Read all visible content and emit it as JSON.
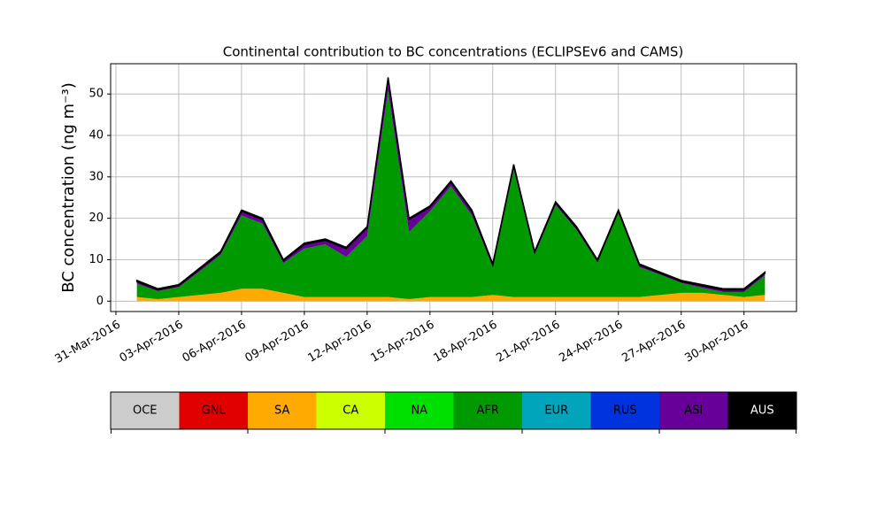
{
  "chart_data": {
    "type": "stackedarea",
    "title": "Continental contribution to BC concentrations (ECLIPSEv6 and CAMS)",
    "y_label": "BC concentration (ng m⁻³)",
    "x": [
      "2016-04-01",
      "2016-04-02",
      "2016-04-03",
      "2016-04-04",
      "2016-04-05",
      "2016-04-06",
      "2016-04-07",
      "2016-04-08",
      "2016-04-09",
      "2016-04-10",
      "2016-04-11",
      "2016-04-12",
      "2016-04-13",
      "2016-04-14",
      "2016-04-15",
      "2016-04-16",
      "2016-04-17",
      "2016-04-18",
      "2016-04-19",
      "2016-04-20",
      "2016-04-21",
      "2016-04-22",
      "2016-04-23",
      "2016-04-24",
      "2016-04-25",
      "2016-04-26",
      "2016-04-27",
      "2016-04-28",
      "2016-04-29",
      "2016-04-30",
      "2016-05-01"
    ],
    "xlim": [
      "2016-03-31",
      "2016-05-02"
    ],
    "xticks": [
      {
        "value": "2016-03-31",
        "label": "31-Mar-2016"
      },
      {
        "value": "2016-04-03",
        "label": "03-Apr-2016"
      },
      {
        "value": "2016-04-06",
        "label": "06-Apr-2016"
      },
      {
        "value": "2016-04-09",
        "label": "09-Apr-2016"
      },
      {
        "value": "2016-04-12",
        "label": "12-Apr-2016"
      },
      {
        "value": "2016-04-15",
        "label": "15-Apr-2016"
      },
      {
        "value": "2016-04-18",
        "label": "18-Apr-2016"
      },
      {
        "value": "2016-04-21",
        "label": "21-Apr-2016"
      },
      {
        "value": "2016-04-24",
        "label": "24-Apr-2016"
      },
      {
        "value": "2016-04-27",
        "label": "27-Apr-2016"
      },
      {
        "value": "2016-04-30",
        "label": "30-Apr-2016"
      }
    ],
    "ylim": [
      -2.5,
      57.3
    ],
    "yticks": [
      0,
      10,
      20,
      30,
      40,
      50
    ],
    "grid": true,
    "legend": "colorbar-below",
    "series": [
      {
        "name": "OCE",
        "color": "#cccccc",
        "values": [
          0,
          0,
          0,
          0,
          0,
          0,
          0,
          0,
          0,
          0,
          0,
          0,
          0,
          0,
          0,
          0,
          0,
          0,
          0,
          0,
          0,
          0,
          0,
          0,
          0,
          0,
          0,
          0,
          0,
          0,
          0
        ]
      },
      {
        "name": "GNL",
        "color": "#e00000",
        "values": [
          0,
          0,
          0,
          0,
          0,
          0,
          0,
          0,
          0,
          0,
          0,
          0,
          0,
          0,
          0,
          0,
          0,
          0,
          0,
          0,
          0,
          0,
          0,
          0,
          0,
          0,
          0,
          0,
          0,
          0,
          0
        ]
      },
      {
        "name": "SA",
        "color": "#ffaa00",
        "values": [
          1,
          0.5,
          1,
          1.5,
          2,
          3,
          3,
          2,
          1,
          1,
          1,
          1,
          1,
          0.5,
          1,
          1,
          1,
          1.5,
          1,
          1,
          1,
          1,
          1,
          1,
          1,
          1.5,
          2,
          2,
          1.5,
          1,
          1.5
        ]
      },
      {
        "name": "CA",
        "color": "#ccff00",
        "values": [
          0,
          0,
          0,
          0,
          0,
          0,
          0,
          0,
          0,
          0,
          0,
          0,
          0,
          0,
          0,
          0,
          0,
          0,
          0,
          0,
          0,
          0,
          0,
          0,
          0,
          0,
          0,
          0,
          0,
          0,
          0
        ]
      },
      {
        "name": "NA",
        "color": "#00e000",
        "values": [
          0,
          0,
          0,
          0,
          0,
          0,
          0,
          0,
          0,
          0,
          0,
          0,
          0,
          0,
          0,
          0,
          0,
          0,
          0,
          0,
          0,
          0,
          0,
          0,
          0,
          0,
          0,
          0,
          0,
          0,
          0
        ]
      },
      {
        "name": "AFR",
        "color": "#009900",
        "values": [
          3.2,
          1.9,
          2.4,
          5.7,
          9.2,
          17.7,
          15.7,
          7.2,
          11.7,
          12.7,
          9.7,
          14.7,
          49.7,
          16.2,
          20.7,
          26.7,
          19.7,
          6.7,
          30.7,
          10.2,
          22.2,
          16.2,
          8.4,
          20.2,
          7.2,
          4.9,
          2.4,
          1.2,
          0.7,
          1.2,
          4.7
        ]
      },
      {
        "name": "EUR",
        "color": "#00a5bb",
        "values": [
          0,
          0,
          0,
          0,
          0,
          0,
          0,
          0,
          0,
          0,
          0,
          0,
          0,
          0,
          0,
          0,
          0,
          0,
          0,
          0,
          0,
          0,
          0,
          0,
          0,
          0,
          0,
          0,
          0,
          0,
          0
        ]
      },
      {
        "name": "RUS",
        "color": "#0033dd",
        "values": [
          0,
          0,
          0,
          0,
          0,
          0,
          0,
          0,
          0,
          0,
          0,
          0,
          0,
          0,
          0,
          0,
          0,
          0,
          0,
          0,
          0,
          0,
          0,
          0,
          0,
          0,
          0,
          0,
          0,
          0,
          0
        ]
      },
      {
        "name": "ASI",
        "color": "#660099",
        "values": [
          0.5,
          0.3,
          0.3,
          0.5,
          0.5,
          1,
          1,
          0.5,
          1,
          1,
          2,
          2,
          3,
          3,
          1,
          1,
          1,
          0.5,
          1,
          0.5,
          0.5,
          0.5,
          0.3,
          0.5,
          0.5,
          0.3,
          0.3,
          0.5,
          0.5,
          0.5,
          0.5
        ]
      },
      {
        "name": "AUS",
        "color": "#000000",
        "values": [
          0.3,
          0.3,
          0.3,
          0.3,
          0.3,
          0.3,
          0.3,
          0.3,
          0.3,
          0.3,
          0.3,
          0.3,
          0.3,
          0.3,
          0.3,
          0.3,
          0.3,
          0.3,
          0.3,
          0.3,
          0.3,
          0.3,
          0.3,
          0.3,
          0.3,
          0.3,
          0.3,
          0.3,
          0.3,
          0.3,
          0.3
        ]
      }
    ]
  }
}
